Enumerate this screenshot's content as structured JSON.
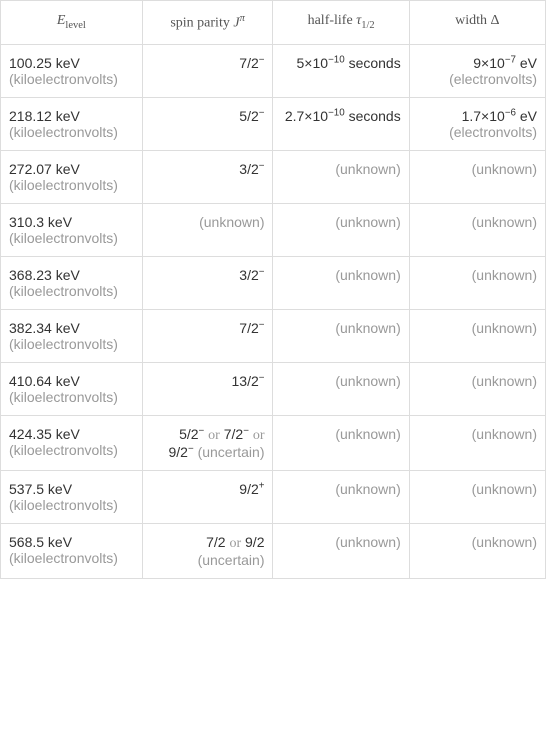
{
  "headers": {
    "energy_var": "E",
    "energy_sub": "level",
    "spin_label": "spin parity ",
    "spin_var": "J",
    "spin_sup": "π",
    "halflife_label": "half-life ",
    "halflife_var": "τ",
    "halflife_sub": "1/2",
    "width_label": "width ",
    "width_var": "Δ"
  },
  "rows": [
    {
      "energy_val": "100.25 keV",
      "energy_unit": " (kiloelectronvolts)",
      "spin_html": "7/2<sup>−</sup>",
      "halflife_val": "5×10<sup>−10</sup> seconds",
      "halflife_unit": "",
      "width_val": "9×10<sup>−7</sup> eV",
      "width_unit": " (electronvolts)"
    },
    {
      "energy_val": "218.12 keV",
      "energy_unit": " (kiloelectronvolts)",
      "spin_html": "5/2<sup>−</sup>",
      "halflife_val": "2.7×10<sup>−10</sup> seconds",
      "halflife_unit": "",
      "width_val": "1.7×10<sup>−6</sup> eV",
      "width_unit": " (electronvolts)"
    },
    {
      "energy_val": "272.07 keV",
      "energy_unit": " (kiloelectronvolts)",
      "spin_html": "3/2<sup>−</sup>",
      "halflife_val": "(unknown)",
      "halflife_unit": "",
      "width_val": "(unknown)",
      "width_unit": ""
    },
    {
      "energy_val": "310.3 keV",
      "energy_unit": " (kiloelectronvolts)",
      "spin_html": "(unknown)",
      "halflife_val": "(unknown)",
      "halflife_unit": "",
      "width_val": "(unknown)",
      "width_unit": ""
    },
    {
      "energy_val": "368.23 keV",
      "energy_unit": " (kiloelectronvolts)",
      "spin_html": "3/2<sup>−</sup>",
      "halflife_val": "(unknown)",
      "halflife_unit": "",
      "width_val": "(unknown)",
      "width_unit": ""
    },
    {
      "energy_val": "382.34 keV",
      "energy_unit": " (kiloelectronvolts)",
      "spin_html": "7/2<sup>−</sup>",
      "halflife_val": "(unknown)",
      "halflife_unit": "",
      "width_val": "(unknown)",
      "width_unit": ""
    },
    {
      "energy_val": "410.64 keV",
      "energy_unit": " (kiloelectronvolts)",
      "spin_html": "13/2<sup>−</sup>",
      "halflife_val": "(unknown)",
      "halflife_unit": "",
      "width_val": "(unknown)",
      "width_unit": ""
    },
    {
      "energy_val": "424.35 keV",
      "energy_unit": " (kiloelectronvolts)",
      "spin_html": "5/2<sup>−</sup> <span class=\"or\">or</span> 7/2<sup>−</sup> <span class=\"or\">or</span> 9/2<sup>−</sup> <span class=\"unit\">(uncertain)</span>",
      "halflife_val": "(unknown)",
      "halflife_unit": "",
      "width_val": "(unknown)",
      "width_unit": ""
    },
    {
      "energy_val": "537.5 keV",
      "energy_unit": " (kiloelectronvolts)",
      "spin_html": "9/2<sup>+</sup>",
      "halflife_val": "(unknown)",
      "halflife_unit": "",
      "width_val": "(unknown)",
      "width_unit": ""
    },
    {
      "energy_val": "568.5 keV",
      "energy_unit": " (kiloelectronvolts)",
      "spin_html": "7/2 <span class=\"or\">or</span> 9/2 <span class=\"unit\">(uncertain)</span>",
      "halflife_val": "(unknown)",
      "halflife_unit": "",
      "width_val": "(unknown)",
      "width_unit": ""
    }
  ]
}
